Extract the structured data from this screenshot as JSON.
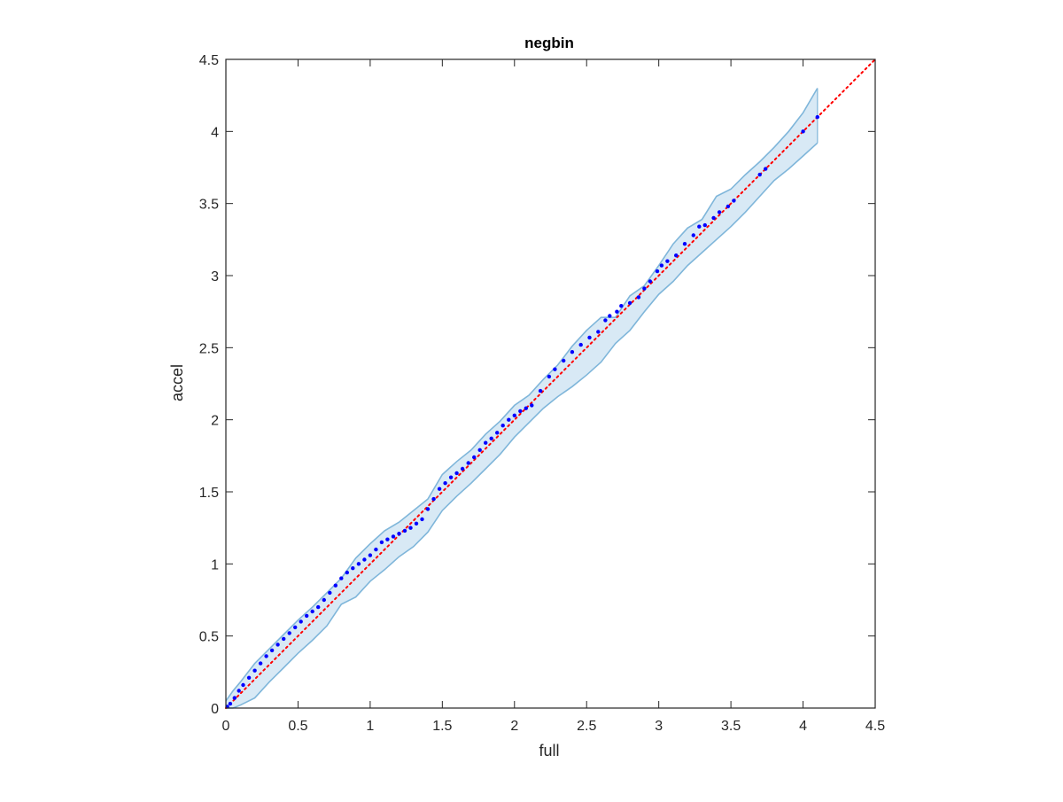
{
  "chart_data": {
    "type": "scatter",
    "title": "negbin",
    "xlabel": "full",
    "ylabel": "accel",
    "xlim": [
      0,
      4.5
    ],
    "ylim": [
      0,
      4.5
    ],
    "x_ticks": [
      "0",
      "0.5",
      "1",
      "1.5",
      "2",
      "2.5",
      "3",
      "3.5",
      "4",
      "4.5"
    ],
    "y_ticks": [
      "0",
      "0.5",
      "1",
      "1.5",
      "2",
      "2.5",
      "3",
      "3.5",
      "4",
      "4.5"
    ],
    "grid": false,
    "legend": "none",
    "reference_line": {
      "x": [
        0,
        4.5
      ],
      "y": [
        0,
        4.5
      ],
      "style": "dotted",
      "color": "#ff0000"
    },
    "band": {
      "color": "#a9cfe8",
      "edge_color": "#7fb6da",
      "x": [
        0.0,
        0.05,
        0.1,
        0.2,
        0.3,
        0.4,
        0.5,
        0.6,
        0.7,
        0.8,
        0.9,
        1.0,
        1.1,
        1.2,
        1.3,
        1.4,
        1.5,
        1.6,
        1.7,
        1.8,
        1.9,
        2.0,
        2.1,
        2.2,
        2.3,
        2.4,
        2.5,
        2.6,
        2.7,
        2.8,
        2.9,
        3.0,
        3.1,
        3.2,
        3.3,
        3.4,
        3.5,
        3.6,
        3.7,
        3.8,
        3.9,
        4.0,
        4.1
      ],
      "upper": [
        0.05,
        0.12,
        0.18,
        0.31,
        0.41,
        0.51,
        0.61,
        0.7,
        0.8,
        0.9,
        1.04,
        1.14,
        1.23,
        1.29,
        1.37,
        1.45,
        1.62,
        1.71,
        1.79,
        1.9,
        1.99,
        2.1,
        2.17,
        2.28,
        2.38,
        2.51,
        2.62,
        2.71,
        2.71,
        2.86,
        2.93,
        3.07,
        3.22,
        3.33,
        3.39,
        3.55,
        3.6,
        3.7,
        3.79,
        3.89,
        4.0,
        4.13,
        4.3
      ],
      "lower": [
        0.0,
        0.0,
        0.02,
        0.07,
        0.18,
        0.28,
        0.38,
        0.47,
        0.57,
        0.72,
        0.77,
        0.88,
        0.96,
        1.05,
        1.12,
        1.22,
        1.37,
        1.47,
        1.56,
        1.66,
        1.76,
        1.88,
        1.98,
        2.08,
        2.16,
        2.23,
        2.31,
        2.4,
        2.53,
        2.62,
        2.75,
        2.87,
        2.96,
        3.07,
        3.16,
        3.25,
        3.34,
        3.44,
        3.55,
        3.66,
        3.74,
        3.83,
        3.92
      ]
    },
    "series": [
      {
        "color": "#0000ff",
        "x": [
          0.01,
          0.03,
          0.06,
          0.09,
          0.12,
          0.16,
          0.2,
          0.24,
          0.28,
          0.32,
          0.36,
          0.4,
          0.44,
          0.48,
          0.52,
          0.56,
          0.6,
          0.64,
          0.68,
          0.72,
          0.76,
          0.8,
          0.84,
          0.88,
          0.92,
          0.96,
          1.0,
          1.04,
          1.08,
          1.12,
          1.16,
          1.2,
          1.24,
          1.28,
          1.32,
          1.36,
          1.4,
          1.44,
          1.48,
          1.52,
          1.56,
          1.6,
          1.64,
          1.68,
          1.72,
          1.76,
          1.8,
          1.84,
          1.88,
          1.92,
          1.96,
          2.0,
          2.04,
          2.08,
          2.12,
          2.18,
          2.24,
          2.28,
          2.34,
          2.4,
          2.46,
          2.52,
          2.58,
          2.63,
          2.66,
          2.71,
          2.74,
          2.8,
          2.86,
          2.9,
          2.94,
          2.99,
          3.02,
          3.06,
          3.12,
          3.18,
          3.24,
          3.28,
          3.32,
          3.38,
          3.42,
          3.48,
          3.52,
          3.7,
          3.74,
          4.0,
          4.1
        ],
        "y": [
          0.01,
          0.03,
          0.07,
          0.12,
          0.16,
          0.21,
          0.26,
          0.31,
          0.36,
          0.4,
          0.44,
          0.48,
          0.52,
          0.56,
          0.6,
          0.64,
          0.67,
          0.7,
          0.75,
          0.8,
          0.85,
          0.9,
          0.94,
          0.97,
          1.0,
          1.03,
          1.06,
          1.1,
          1.15,
          1.17,
          1.19,
          1.21,
          1.23,
          1.25,
          1.28,
          1.31,
          1.38,
          1.45,
          1.52,
          1.56,
          1.6,
          1.63,
          1.66,
          1.7,
          1.74,
          1.79,
          1.84,
          1.87,
          1.91,
          1.96,
          2.0,
          2.03,
          2.06,
          2.08,
          2.1,
          2.2,
          2.3,
          2.35,
          2.41,
          2.47,
          2.52,
          2.57,
          2.61,
          2.69,
          2.72,
          2.75,
          2.79,
          2.81,
          2.85,
          2.91,
          2.96,
          3.03,
          3.07,
          3.1,
          3.14,
          3.22,
          3.28,
          3.34,
          3.35,
          3.4,
          3.44,
          3.48,
          3.52,
          3.7,
          3.74,
          4.0,
          4.1
        ]
      }
    ]
  }
}
